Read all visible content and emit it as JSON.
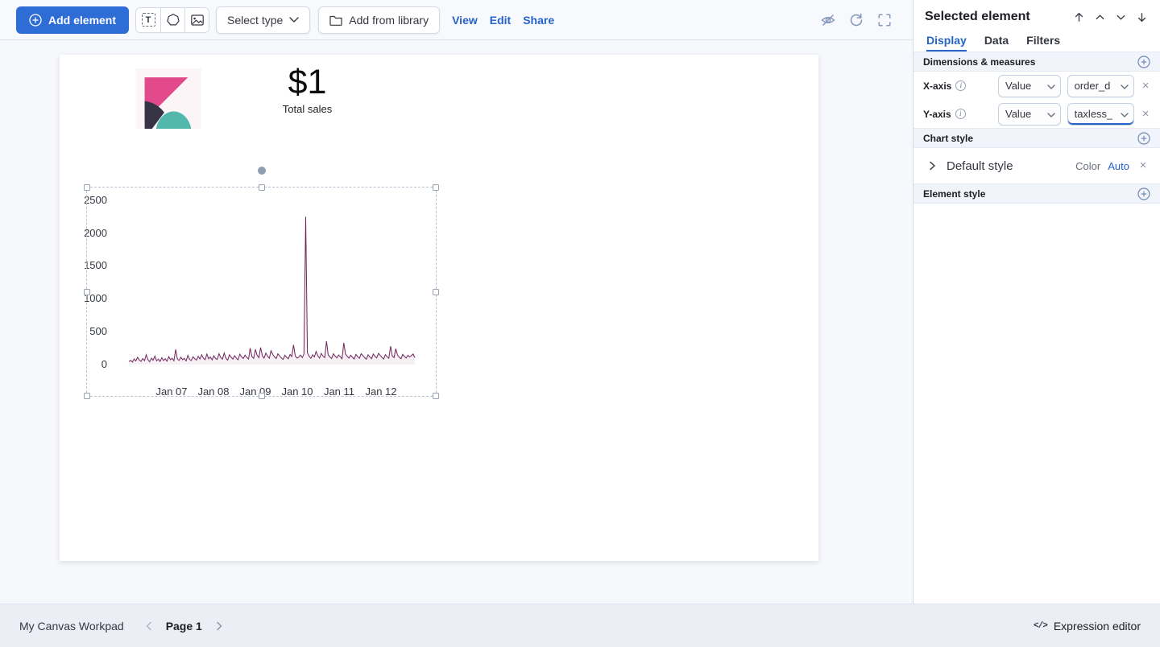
{
  "toolbar": {
    "add_element_label": "Add element",
    "select_type_label": "Select type",
    "add_from_library_label": "Add from library",
    "view_label": "View",
    "edit_label": "Edit",
    "share_label": "Share"
  },
  "panel": {
    "title": "Selected element",
    "tabs": [
      {
        "label": "Display"
      },
      {
        "label": "Data"
      },
      {
        "label": "Filters"
      }
    ],
    "dimensions": {
      "title": "Dimensions & measures",
      "rows": [
        {
          "label": "X-axis",
          "agg": "Value",
          "field": "order_d"
        },
        {
          "label": "Y-axis",
          "agg": "Value",
          "field": "taxless_"
        }
      ]
    },
    "chart_style": {
      "title": "Chart style",
      "default_style_label": "Default style",
      "color_label": "Color",
      "color_value": "Auto"
    },
    "element_style": {
      "title": "Element style"
    }
  },
  "canvas": {
    "metric_value": "$1",
    "metric_label": "Total sales"
  },
  "chart_data": {
    "type": "line",
    "title": "",
    "xlabel": "",
    "ylabel": "",
    "x_tick_labels": [
      "Jan 07",
      "Jan 08",
      "Jan 09",
      "Jan 10",
      "Jan 11",
      "Jan 12"
    ],
    "y_tick_labels": [
      "0",
      "500",
      "1000",
      "1500",
      "2000",
      "2500"
    ],
    "ylim": [
      0,
      2500
    ],
    "grid": false,
    "legend": false,
    "line_color": "#71245e",
    "series": [
      {
        "name": "taxless_",
        "values": [
          45,
          62,
          38,
          85,
          55,
          110,
          70,
          48,
          92,
          60,
          150,
          75,
          42,
          98,
          66,
          130,
          58,
          82,
          47,
          105,
          63,
          88,
          52,
          120,
          74,
          95,
          58,
          230,
          85,
          64,
          110,
          72,
          95,
          55,
          140,
          80,
          62,
          118,
          90,
          68,
          125,
          85,
          150,
          95,
          75,
          160,
          88,
          115,
          70,
          135,
          92,
          78,
          165,
          105,
          85,
          175,
          95,
          68,
          148,
          112,
          82,
          135,
          98,
          72,
          158,
          118,
          92,
          145,
          108,
          86,
          250,
          120,
          95,
          230,
          140,
          105,
          260,
          135,
          98,
          175,
          128,
          95,
          210,
          155,
          118,
          92,
          165,
          130,
          100,
          78,
          142,
          108,
          88,
          155,
          122,
          300,
          135,
          98,
          112,
          145,
          105,
          160,
          2250,
          180,
          125,
          95,
          150,
          115,
          200,
          135,
          98,
          170,
          128,
          105,
          355,
          148,
          115,
          92,
          165,
          130,
          102,
          145,
          118,
          88,
          330,
          160,
          125,
          98,
          142,
          110,
          85,
          155,
          120,
          95,
          165,
          135,
          105,
          82,
          148,
          115,
          90,
          160,
          125,
          100,
          170,
          140,
          108,
          85,
          152,
          118,
          95,
          280,
          130,
          105,
          240,
          145,
          112,
          88,
          155,
          122,
          98,
          142,
          115,
          135,
          160,
          105
        ]
      }
    ]
  },
  "footer": {
    "workpad_name": "My Canvas Workpad",
    "page_label": "Page 1",
    "expression_label": "Expression editor",
    "expression_icon": "</>"
  }
}
